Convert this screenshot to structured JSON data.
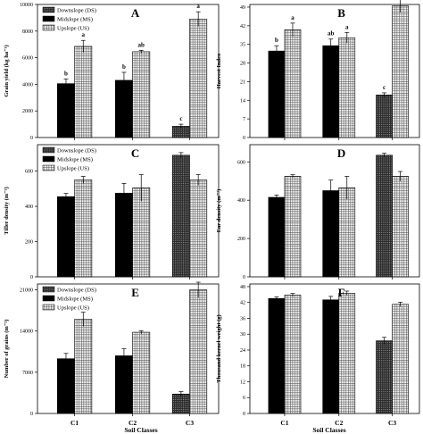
{
  "figure": {
    "xlabel": "Soil Classes",
    "legend_labels": [
      "Downslope (DS)",
      "Midslope (MS)",
      "Upslope (US)"
    ]
  },
  "chart_data": [
    {
      "type": "bar",
      "panel": "A",
      "ylabel": "Grain yield (kg ha⁻¹)",
      "ylim": [
        0,
        10000
      ],
      "yticks": [
        0,
        2000,
        4000,
        6000,
        8000,
        10000
      ],
      "categories": [
        "C1",
        "C2",
        "C3"
      ],
      "legend": "top-left",
      "grid": false,
      "series": [
        {
          "name": "Downslope (DS)",
          "values": [
            null,
            null,
            850
          ],
          "errors": [
            null,
            null,
            150
          ],
          "labels": [
            "",
            "",
            "c"
          ]
        },
        {
          "name": "Midslope (MS)",
          "values": [
            4050,
            4300,
            null
          ],
          "errors": [
            350,
            600,
            null
          ],
          "labels": [
            "b",
            "b",
            ""
          ]
        },
        {
          "name": "Upslope (US)",
          "values": [
            6850,
            6450,
            8900
          ],
          "errors": [
            450,
            100,
            550
          ],
          "labels": [
            "a",
            "ab",
            "a"
          ]
        }
      ]
    },
    {
      "type": "bar",
      "panel": "B",
      "ylabel": "Harvest Index",
      "ylim": [
        0,
        50
      ],
      "yticks": [
        0,
        7,
        14,
        21,
        28,
        35,
        42,
        49
      ],
      "categories": [
        "C1",
        "C2",
        "C3"
      ],
      "legend": "none",
      "grid": false,
      "series": [
        {
          "name": "Downslope (DS)",
          "values": [
            null,
            null,
            16
          ],
          "errors": [
            null,
            null,
            0.8
          ],
          "labels": [
            "",
            "",
            "c"
          ]
        },
        {
          "name": "Midslope (MS)",
          "values": [
            32.5,
            34.5,
            null
          ],
          "errors": [
            2,
            2.5,
            null
          ],
          "labels": [
            "b",
            "ab",
            ""
          ]
        },
        {
          "name": "Upslope (US)",
          "values": [
            40.5,
            37.5,
            49.5
          ],
          "errors": [
            2.5,
            2,
            2.5
          ],
          "labels": [
            "a",
            "a",
            "a"
          ]
        }
      ]
    },
    {
      "type": "bar",
      "panel": "C",
      "ylabel": "Tiller density (m⁻²)",
      "ylim": [
        0,
        750
      ],
      "yticks": [
        0,
        200,
        400,
        600
      ],
      "categories": [
        "C1",
        "C2",
        "C3"
      ],
      "legend": "top-left",
      "grid": false,
      "series": [
        {
          "name": "Downslope (DS)",
          "values": [
            null,
            null,
            690
          ],
          "errors": [
            null,
            null,
            15
          ],
          "labels": [
            "",
            "",
            ""
          ]
        },
        {
          "name": "Midslope (MS)",
          "values": [
            455,
            475,
            null
          ],
          "errors": [
            18,
            55,
            null
          ],
          "labels": [
            "",
            "",
            ""
          ]
        },
        {
          "name": "Upslope (US)",
          "values": [
            550,
            505,
            550
          ],
          "errors": [
            20,
            75,
            30
          ],
          "labels": [
            "",
            "",
            ""
          ]
        }
      ]
    },
    {
      "type": "bar",
      "panel": "D",
      "ylabel": "Ear density (m⁻²)",
      "ylim": [
        0,
        690
      ],
      "yticks": [
        0,
        200,
        400,
        600
      ],
      "categories": [
        "C1",
        "C2",
        "C3"
      ],
      "legend": "none",
      "grid": false,
      "series": [
        {
          "name": "Downslope (DS)",
          "values": [
            null,
            null,
            635
          ],
          "errors": [
            null,
            null,
            10
          ],
          "labels": [
            "",
            "",
            ""
          ]
        },
        {
          "name": "Midslope (MS)",
          "values": [
            415,
            450,
            null
          ],
          "errors": [
            12,
            55,
            null
          ],
          "labels": [
            "",
            "",
            ""
          ]
        },
        {
          "name": "Upslope (US)",
          "values": [
            525,
            465,
            525
          ],
          "errors": [
            8,
            60,
            25
          ],
          "labels": [
            "",
            "",
            ""
          ]
        }
      ]
    },
    {
      "type": "bar",
      "panel": "E",
      "ylabel": "Number of grains (m⁻²)",
      "ylim": [
        0,
        22000
      ],
      "yticks": [
        0,
        7000,
        14000,
        21000
      ],
      "categories": [
        "C1",
        "C2",
        "C3"
      ],
      "legend": "top-left",
      "grid": false,
      "series": [
        {
          "name": "Downslope (DS)",
          "values": [
            null,
            null,
            3300
          ],
          "errors": [
            null,
            null,
            400
          ],
          "labels": [
            "",
            "",
            ""
          ]
        },
        {
          "name": "Midslope (MS)",
          "values": [
            9300,
            9800,
            null
          ],
          "errors": [
            900,
            1200,
            null
          ],
          "labels": [
            "",
            "",
            ""
          ]
        },
        {
          "name": "Upslope (US)",
          "values": [
            16000,
            13800,
            21000
          ],
          "errors": [
            1200,
            250,
            1300
          ],
          "labels": [
            "",
            "",
            ""
          ]
        }
      ]
    },
    {
      "type": "bar",
      "panel": "F",
      "ylabel": "Thousand kernel weight (g)",
      "ylim": [
        0,
        49
      ],
      "yticks": [
        0,
        6,
        12,
        18,
        24,
        30,
        36,
        42,
        48
      ],
      "categories": [
        "C1",
        "C2",
        "C3"
      ],
      "legend": "none",
      "grid": false,
      "series": [
        {
          "name": "Downslope (DS)",
          "values": [
            null,
            null,
            27.5
          ],
          "errors": [
            null,
            null,
            1.3
          ],
          "labels": [
            "",
            "",
            ""
          ]
        },
        {
          "name": "Midslope (MS)",
          "values": [
            43.5,
            43,
            null
          ],
          "errors": [
            0.6,
            1.3,
            null
          ],
          "labels": [
            "",
            "",
            ""
          ]
        },
        {
          "name": "Upslope (US)",
          "values": [
            44.8,
            45.5,
            41.3
          ],
          "errors": [
            0.6,
            0.8,
            0.8
          ],
          "labels": [
            "",
            "",
            ""
          ]
        }
      ]
    }
  ]
}
